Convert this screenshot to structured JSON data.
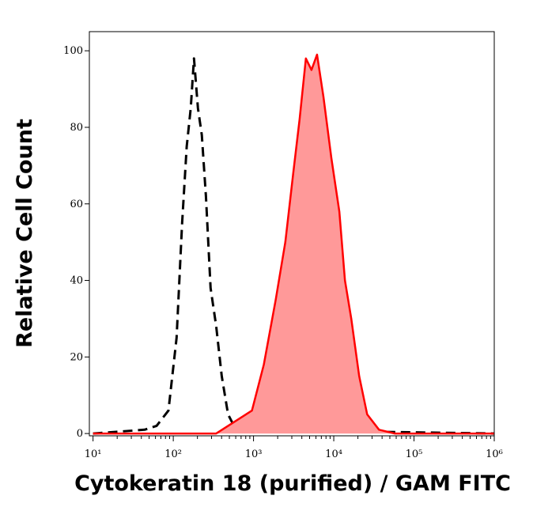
{
  "chart_data": {
    "type": "histogram-overlay",
    "xlabel": "Cytokeratin 18 (purified) / GAM FITC",
    "ylabel": "Relative Cell Count",
    "xscale": "log",
    "xlim": [
      9,
      1000000
    ],
    "ylim": [
      -0.6,
      105
    ],
    "xticks": [
      {
        "value": 10,
        "label": "10¹"
      },
      {
        "value": 100,
        "label": "10²"
      },
      {
        "value": 1000,
        "label": "10³"
      },
      {
        "value": 10000,
        "label": "10⁴"
      },
      {
        "value": 100000,
        "label": "10⁵"
      },
      {
        "value": 1000000,
        "label": "10⁶"
      }
    ],
    "yticks": [
      0,
      20,
      40,
      60,
      80,
      100
    ],
    "series": [
      {
        "color": "#000000",
        "dashed": true,
        "filled": false,
        "x": [
          10,
          44,
          62,
          87,
          110,
          129,
          147,
          165,
          181,
          203,
          227,
          255,
          292,
          343,
          402,
          482,
          605,
          1000000
        ],
        "values": [
          0,
          1,
          2,
          6,
          25,
          55,
          75,
          85,
          98,
          85,
          78,
          62,
          38,
          28,
          15,
          5,
          1,
          0
        ]
      },
      {
        "color": "#ff0000",
        "fill": "#ff9999",
        "dashed": false,
        "filled": true,
        "x": [
          10,
          343,
          482,
          680,
          955,
          1345,
          1894,
          2489,
          3126,
          3750,
          4498,
          5284,
          6194,
          7430,
          9333,
          11720,
          13770,
          16520,
          20750,
          26070,
          36660,
          57810,
          1000000
        ],
        "values": [
          0,
          0,
          2,
          4,
          6,
          18,
          35,
          50,
          68,
          82,
          98,
          95,
          99,
          88,
          72,
          58,
          40,
          30,
          15,
          5,
          1,
          0,
          0
        ]
      }
    ]
  }
}
